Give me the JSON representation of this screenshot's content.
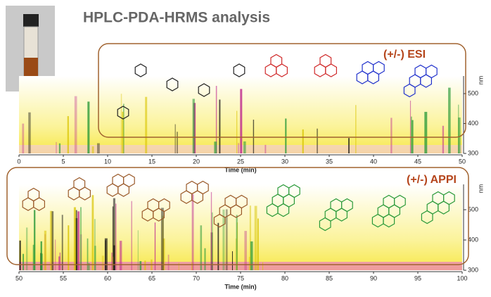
{
  "title": "HPLC-PDA-HRMS analysis",
  "panels": [
    {
      "label": "(+/-) ESI",
      "x_label": "Time (min)",
      "y_unit": "nm",
      "xticks": [
        0,
        5,
        10,
        15,
        20,
        25,
        30,
        35,
        40,
        45,
        50
      ],
      "yticks": [
        300,
        400,
        500
      ]
    },
    {
      "label": "(+/-) APPI",
      "x_label": "Time (min)",
      "y_unit": "nm",
      "xticks": [
        50,
        55,
        60,
        65,
        70,
        75,
        80,
        85,
        90,
        95,
        100
      ],
      "yticks": [
        300,
        400,
        500
      ]
    }
  ]
}
